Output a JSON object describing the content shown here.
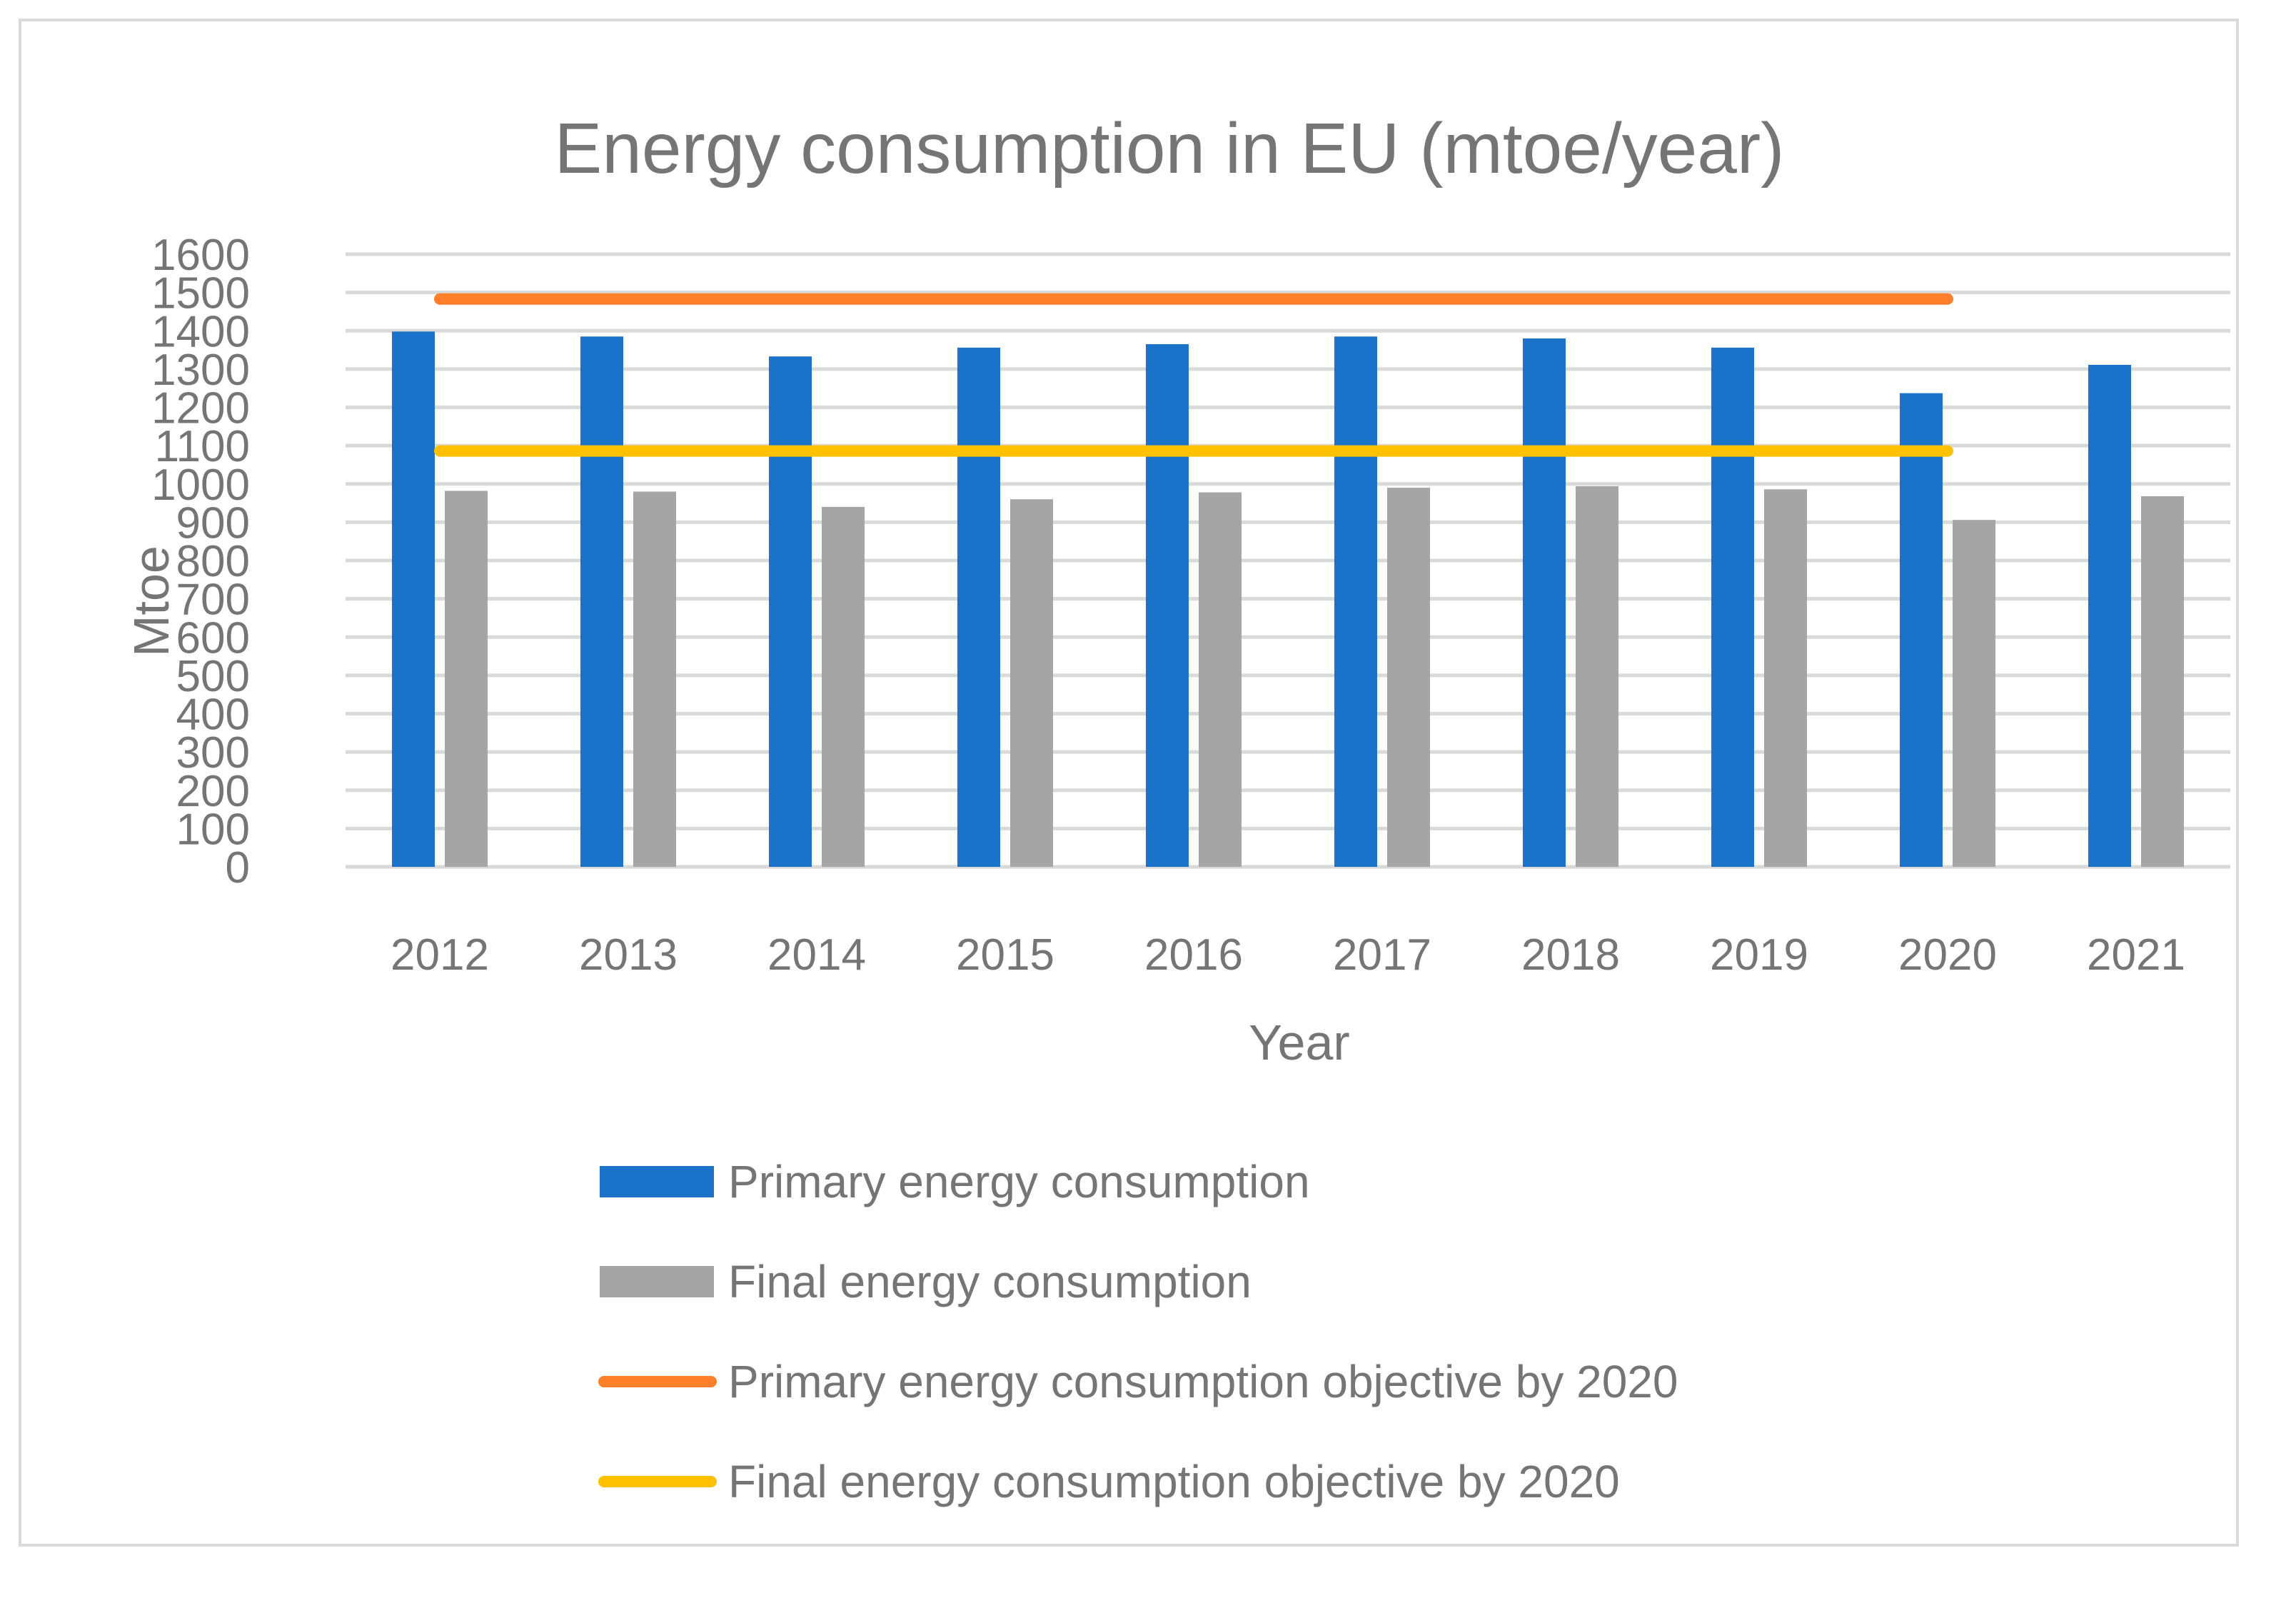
{
  "chart_data": {
    "type": "bar",
    "title": "Energy consumption in EU (mtoe/year)",
    "xlabel": "Year",
    "ylabel": "Mtoe",
    "ylim": [
      0,
      1600
    ],
    "y_ticks": [
      "0",
      "100",
      "200",
      "300",
      "400",
      "500",
      "600",
      "700",
      "800",
      "900",
      "1000",
      "1100",
      "1200",
      "1300",
      "1400",
      "1500",
      "1600"
    ],
    "grid": true,
    "legend_position": "bottom",
    "categories": [
      "2012",
      "2013",
      "2014",
      "2015",
      "2016",
      "2017",
      "2018",
      "2019",
      "2020",
      "2021"
    ],
    "series": [
      {
        "name": "Primary energy consumption",
        "type": "bar",
        "color": "#1a73c9",
        "values": [
          1398,
          1385,
          1333,
          1356,
          1365,
          1385,
          1380,
          1356,
          1237,
          1311
        ]
      },
      {
        "name": "Final energy consumption",
        "type": "bar",
        "color": "#a5a5a5",
        "values": [
          982,
          980,
          940,
          960,
          978,
          990,
          994,
          986,
          906,
          968
        ]
      },
      {
        "name": "Primary energy consumption objective by 2020",
        "type": "line",
        "color": "#ff7f2a",
        "values": [
          1483,
          1483,
          1483,
          1483,
          1483,
          1483,
          1483,
          1483,
          1483,
          null
        ]
      },
      {
        "name": "Final energy consumption objective by 2020",
        "type": "line",
        "color": "#ffc000",
        "values": [
          1086,
          1086,
          1086,
          1086,
          1086,
          1086,
          1086,
          1086,
          1086,
          null
        ]
      }
    ]
  }
}
